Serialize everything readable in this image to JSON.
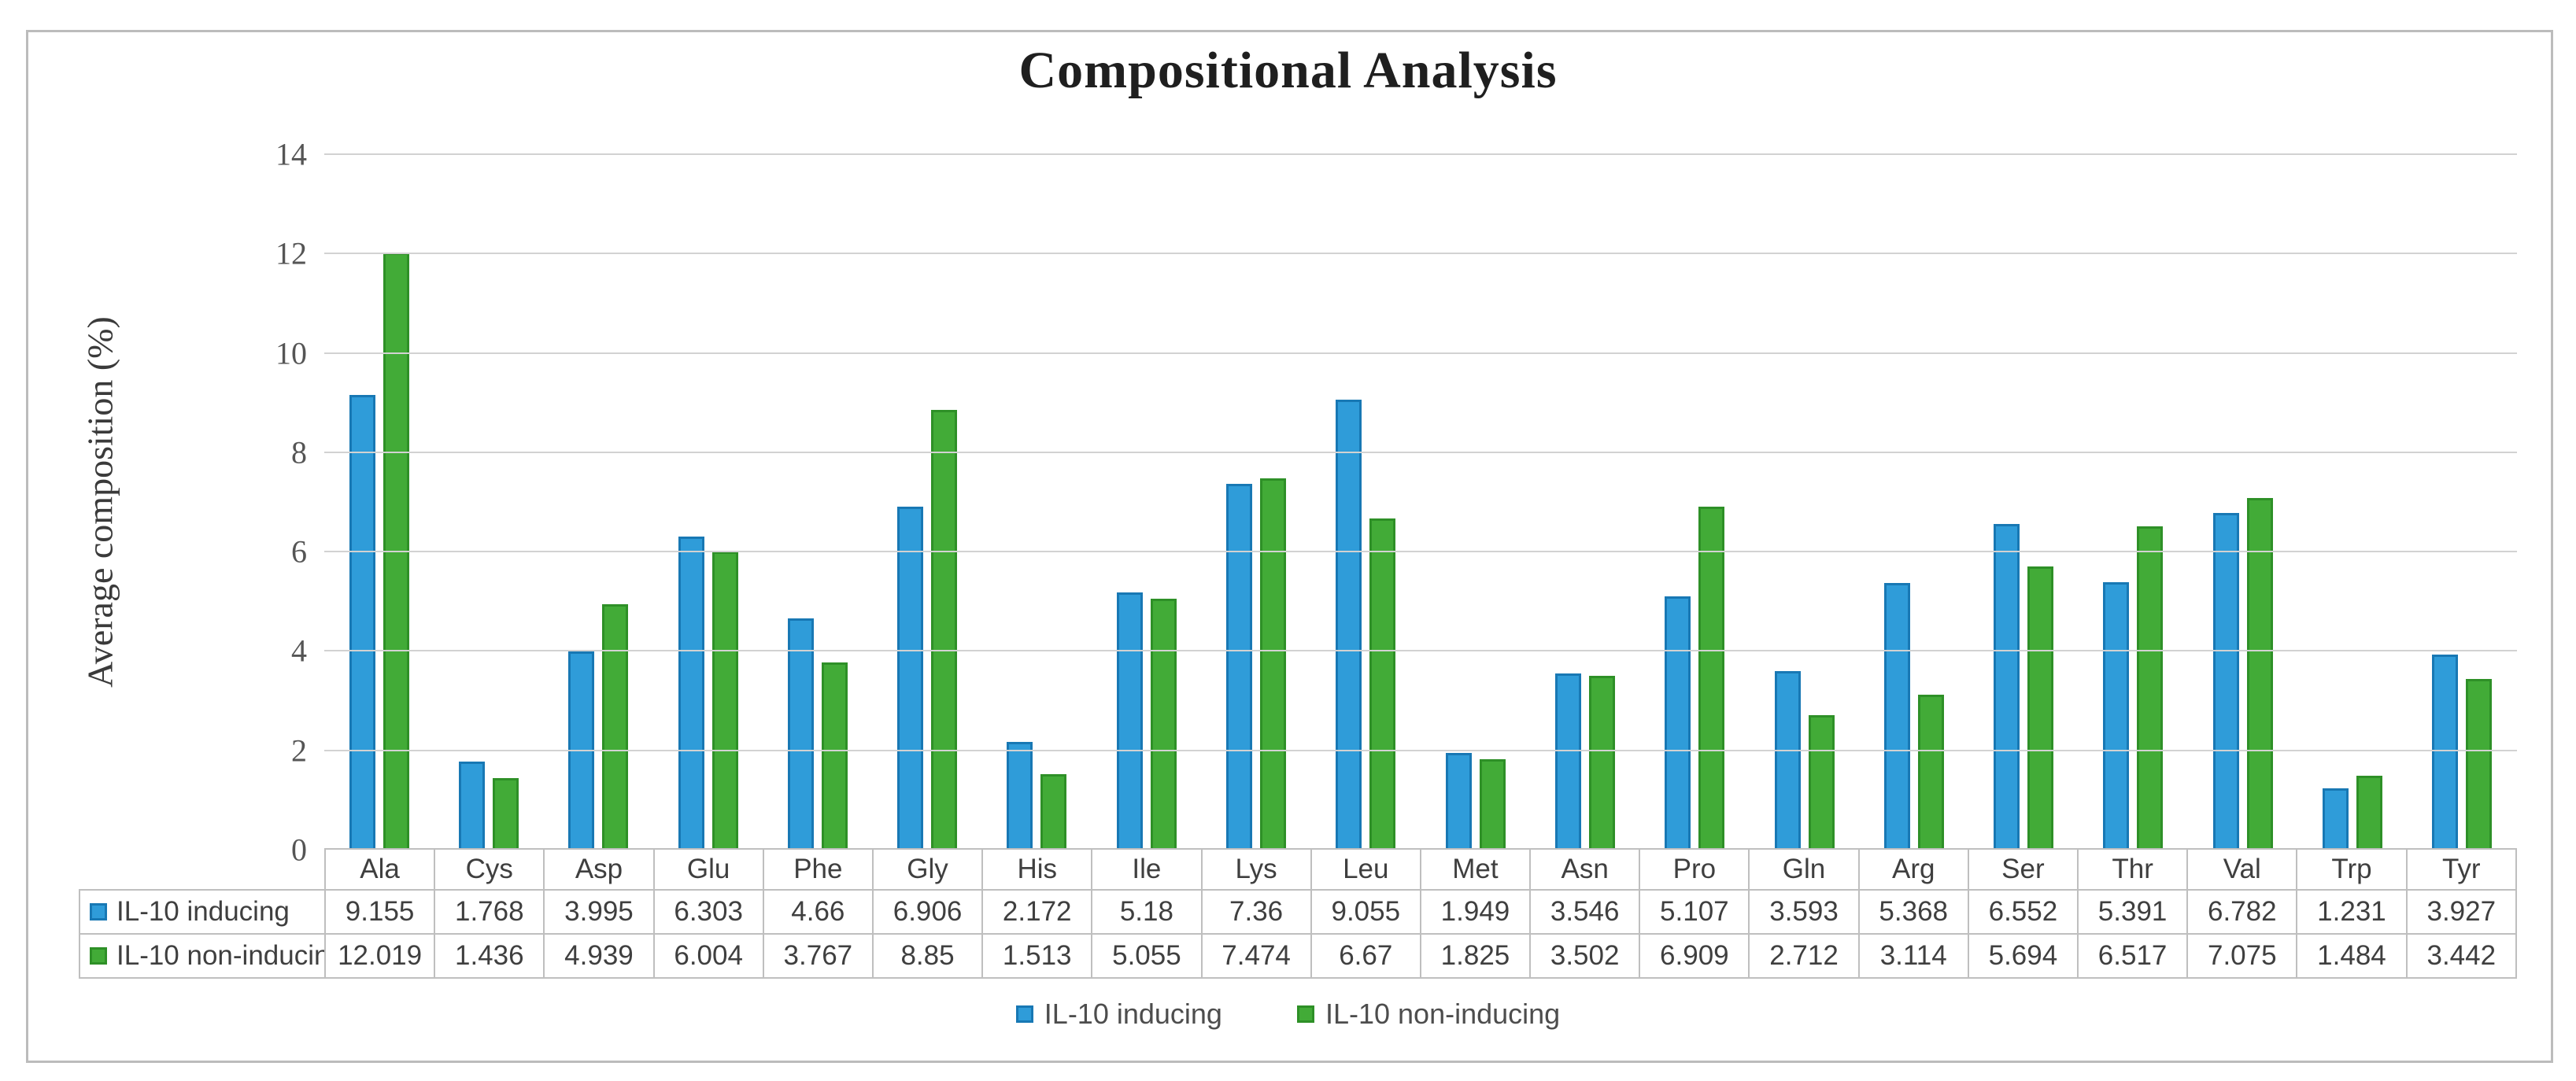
{
  "chart_data": {
    "type": "bar",
    "title": "Compositional Analysis",
    "ylabel": "Average composition (%)",
    "xlabel": "",
    "ylim": [
      0,
      14
    ],
    "ytick_step": 2,
    "grid": true,
    "legend_position": "bottom",
    "categories": [
      "Ala",
      "Cys",
      "Asp",
      "Glu",
      "Phe",
      "Gly",
      "His",
      "Ile",
      "Lys",
      "Leu",
      "Met",
      "Asn",
      "Pro",
      "Gln",
      "Arg",
      "Ser",
      "Thr",
      "Val",
      "Trp",
      "Tyr"
    ],
    "series": [
      {
        "name": "IL-10 inducing",
        "color": "#2f9cd9",
        "border_color": "#1878b4",
        "values": [
          9.155,
          1.768,
          3.995,
          6.303,
          4.66,
          6.906,
          2.172,
          5.18,
          7.36,
          9.055,
          1.949,
          3.546,
          5.107,
          3.593,
          5.368,
          6.552,
          5.391,
          6.782,
          1.231,
          3.927
        ]
      },
      {
        "name": "IL-10 non-inducing",
        "color": "#42ab37",
        "border_color": "#2e9027",
        "values": [
          12.019,
          1.436,
          4.939,
          6.004,
          3.767,
          8.85,
          1.513,
          5.055,
          7.474,
          6.67,
          1.825,
          3.502,
          6.909,
          2.712,
          3.114,
          5.694,
          6.517,
          7.075,
          1.484,
          3.442
        ]
      }
    ]
  },
  "icons": {
    "legend_swatch_blue": "blue-square-swatch-icon",
    "legend_swatch_green": "green-square-swatch-icon"
  }
}
